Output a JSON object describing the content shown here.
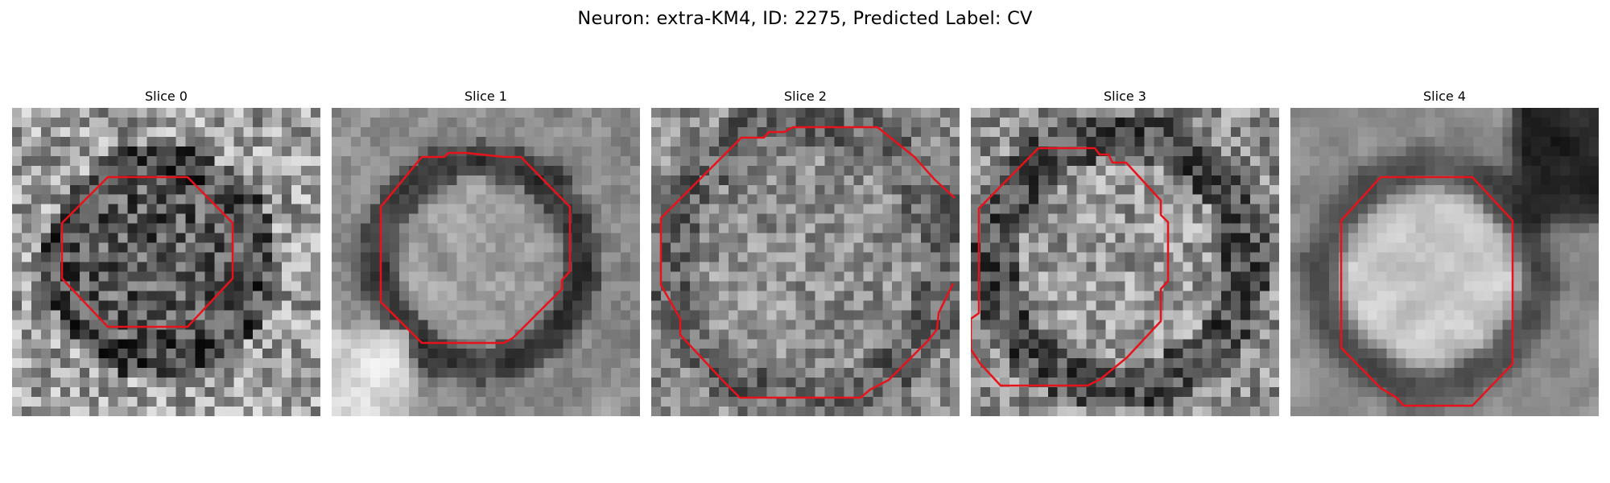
{
  "figure": {
    "title": "Neuron: extra-KM4, ID: 2275, Predicted Label: CV",
    "contour_color": "#e8121b",
    "colormap": "grayscale",
    "grid_size": 32
  },
  "panels": [
    {
      "title": "Slice 0",
      "appearance": "dim dark cell interior, bright speckled background"
    },
    {
      "title": "Slice 1",
      "appearance": "dark ring with bright center spot"
    },
    {
      "title": "Slice 2",
      "appearance": "large gray textured cell filling panel"
    },
    {
      "title": "Slice 3",
      "appearance": "medium gray speckled cell with dark rim"
    },
    {
      "title": "Slice 4",
      "appearance": "bright blurry cell, dark upper-right corner"
    }
  ]
}
